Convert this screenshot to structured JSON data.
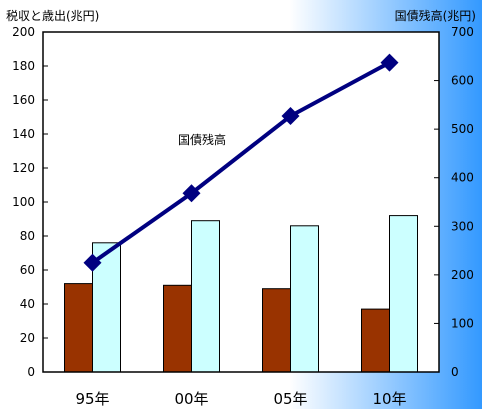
{
  "chart_data": {
    "type": "bar-line-combo",
    "categories": [
      "95年",
      "00年",
      "05年",
      "10年"
    ],
    "ylabel_left": "税収と歳出(兆円)",
    "ylabel_right": "国債残高(兆円)",
    "ylim_left": [
      0,
      200
    ],
    "ylim_right": [
      0,
      700
    ],
    "yticks_left": [
      0,
      20,
      40,
      60,
      80,
      100,
      120,
      140,
      160,
      180,
      200
    ],
    "yticks_right": [
      0,
      100,
      200,
      300,
      400,
      500,
      600,
      700
    ],
    "grid": false,
    "series": [
      {
        "values": [
          52,
          51,
          49,
          37
        ],
        "axis": "left",
        "kind": "bar",
        "color": "#993300"
      },
      {
        "values": [
          76,
          89,
          86,
          92
        ],
        "axis": "left",
        "kind": "bar",
        "color": "#ccffff"
      },
      {
        "name": "国債残高",
        "values": [
          225,
          368,
          527,
          637
        ],
        "axis": "right",
        "kind": "line",
        "color": "#000080"
      }
    ],
    "annotations": [
      {
        "text": "国債残高"
      }
    ]
  }
}
